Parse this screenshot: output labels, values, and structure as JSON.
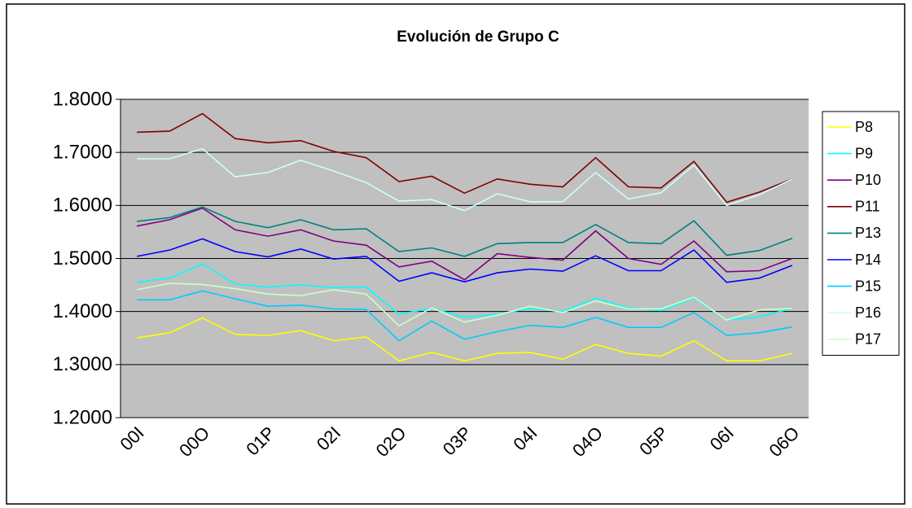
{
  "chart_data": {
    "type": "line",
    "title": "Evolución de Grupo C",
    "categories": [
      "00I",
      null,
      "00O",
      null,
      "01P",
      null,
      "02I",
      null,
      "02O",
      null,
      "03P",
      null,
      "04I",
      null,
      "04O",
      null,
      "05P",
      null,
      "06I",
      null,
      "06O"
    ],
    "ylim": [
      1.2,
      1.8
    ],
    "yticks": [
      {
        "value": 1.2,
        "label": "1.2000"
      },
      {
        "value": 1.3,
        "label": "1.3000"
      },
      {
        "value": 1.4,
        "label": "1.4000"
      },
      {
        "value": 1.5,
        "label": "1.5000"
      },
      {
        "value": 1.6,
        "label": "1.6000"
      },
      {
        "value": 1.7,
        "label": "1.7000"
      },
      {
        "value": 1.8,
        "label": "1.8000"
      }
    ],
    "grid": true,
    "legend": "right",
    "series": [
      {
        "name": "P8",
        "color": "#ffff00",
        "values": [
          1.35,
          1.36,
          1.388,
          1.357,
          1.355,
          1.364,
          1.345,
          1.352,
          1.307,
          1.323,
          1.307,
          1.321,
          1.323,
          1.31,
          1.338,
          1.321,
          1.316,
          1.345,
          1.307,
          1.307,
          1.321
        ]
      },
      {
        "name": "P9",
        "color": "#00ffff",
        "values": [
          1.455,
          1.463,
          1.49,
          1.452,
          1.446,
          1.45,
          1.445,
          1.446,
          1.395,
          1.406,
          1.389,
          1.395,
          1.406,
          1.4,
          1.425,
          1.407,
          1.402,
          1.425,
          1.384,
          1.39,
          1.406
        ]
      },
      {
        "name": "P10",
        "color": "#800080",
        "values": [
          1.561,
          1.573,
          1.595,
          1.554,
          1.542,
          1.554,
          1.533,
          1.525,
          1.484,
          1.495,
          1.46,
          1.509,
          1.502,
          1.497,
          1.552,
          1.5,
          1.489,
          1.533,
          1.475,
          1.477,
          1.5
        ]
      },
      {
        "name": "P11",
        "color": "#800000",
        "values": [
          1.738,
          1.74,
          1.773,
          1.726,
          1.718,
          1.722,
          1.702,
          1.69,
          1.645,
          1.655,
          1.623,
          1.65,
          1.64,
          1.635,
          1.69,
          1.635,
          1.633,
          1.683,
          1.606,
          1.625,
          1.65
        ]
      },
      {
        "name": "P13",
        "color": "#008080",
        "values": [
          1.57,
          1.577,
          1.597,
          1.57,
          1.558,
          1.573,
          1.554,
          1.556,
          1.513,
          1.52,
          1.504,
          1.528,
          1.53,
          1.53,
          1.564,
          1.53,
          1.528,
          1.571,
          1.506,
          1.515,
          1.538
        ]
      },
      {
        "name": "P14",
        "color": "#0000ff",
        "values": [
          1.504,
          1.516,
          1.537,
          1.513,
          1.503,
          1.518,
          1.499,
          1.504,
          1.457,
          1.473,
          1.456,
          1.473,
          1.48,
          1.476,
          1.505,
          1.477,
          1.477,
          1.516,
          1.455,
          1.463,
          1.487
        ]
      },
      {
        "name": "P15",
        "color": "#00ccff",
        "values": [
          1.422,
          1.422,
          1.439,
          1.424,
          1.41,
          1.412,
          1.405,
          1.404,
          1.345,
          1.382,
          1.348,
          1.362,
          1.374,
          1.37,
          1.389,
          1.37,
          1.37,
          1.398,
          1.355,
          1.36,
          1.371
        ]
      },
      {
        "name": "P16",
        "color": "#ccffff",
        "values": [
          1.688,
          1.688,
          1.707,
          1.654,
          1.662,
          1.685,
          1.665,
          1.643,
          1.608,
          1.611,
          1.59,
          1.622,
          1.607,
          1.607,
          1.662,
          1.612,
          1.624,
          1.676,
          1.6,
          1.62,
          1.65
        ]
      },
      {
        "name": "P17",
        "color": "#ccffcc",
        "values": [
          1.441,
          1.453,
          1.451,
          1.443,
          1.433,
          1.43,
          1.441,
          1.433,
          1.373,
          1.407,
          1.38,
          1.393,
          1.41,
          1.398,
          1.42,
          1.405,
          1.405,
          1.427,
          1.384,
          1.403,
          1.406
        ]
      }
    ]
  }
}
